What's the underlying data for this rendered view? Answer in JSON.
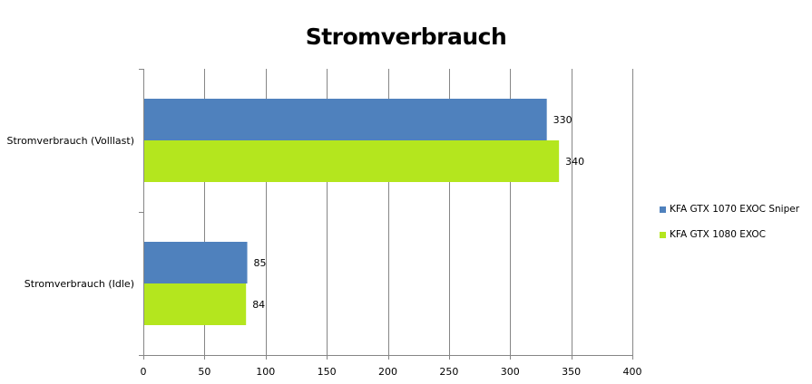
{
  "chart_data": {
    "type": "bar",
    "orientation": "horizontal",
    "title": "Stromverbrauch",
    "categories": [
      "Stromverbrauch (Volllast)",
      "Stromverbrauch (Idle)"
    ],
    "series": [
      {
        "name": "KFA GTX 1070 EXOC Sniper",
        "color": "#4f81bd",
        "values": [
          330,
          85
        ]
      },
      {
        "name": "KFA GTX 1080 EXOC",
        "color": "#b4e61e",
        "values": [
          340,
          84
        ]
      }
    ],
    "xlim": [
      0,
      400
    ],
    "xticks": [
      "0",
      "50",
      "100",
      "150",
      "200",
      "250",
      "300",
      "350",
      "400"
    ],
    "grid": true,
    "legend_position": "right"
  }
}
